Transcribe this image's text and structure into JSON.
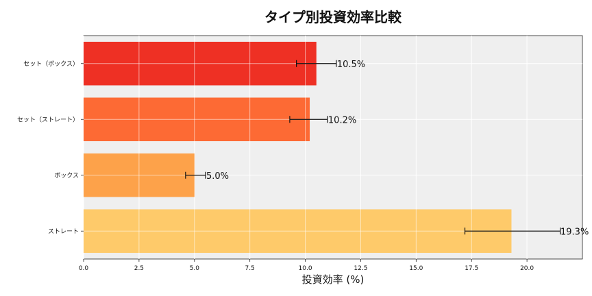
{
  "chart_data": {
    "type": "bar",
    "orientation": "horizontal",
    "title": "タイプ別投資効率比較",
    "xlabel": "投資効率 (%)",
    "ylabel": "",
    "xlim": [
      0,
      22.5
    ],
    "xticks": [
      "0.0",
      "2.5",
      "5.0",
      "7.5",
      "10.0",
      "12.5",
      "15.0",
      "17.5",
      "20.0"
    ],
    "grid": true,
    "categories": [
      "セット（ボックス）",
      "セット（ストレート）",
      "ボックス",
      "ストレート"
    ],
    "values": [
      10.5,
      10.2,
      5.0,
      19.3
    ],
    "errors": [
      {
        "low": 9.6,
        "high": 11.4
      },
      {
        "low": 9.3,
        "high": 11.0
      },
      {
        "low": 4.6,
        "high": 5.5
      },
      {
        "low": 17.2,
        "high": 21.5
      }
    ],
    "data_labels": [
      "10.5%",
      "10.2%",
      "5.0%",
      "19.3%"
    ],
    "colors": [
      "#ee3024",
      "#fd6a34",
      "#fda24a",
      "#feca6a"
    ],
    "plot_background": "#efefef"
  }
}
